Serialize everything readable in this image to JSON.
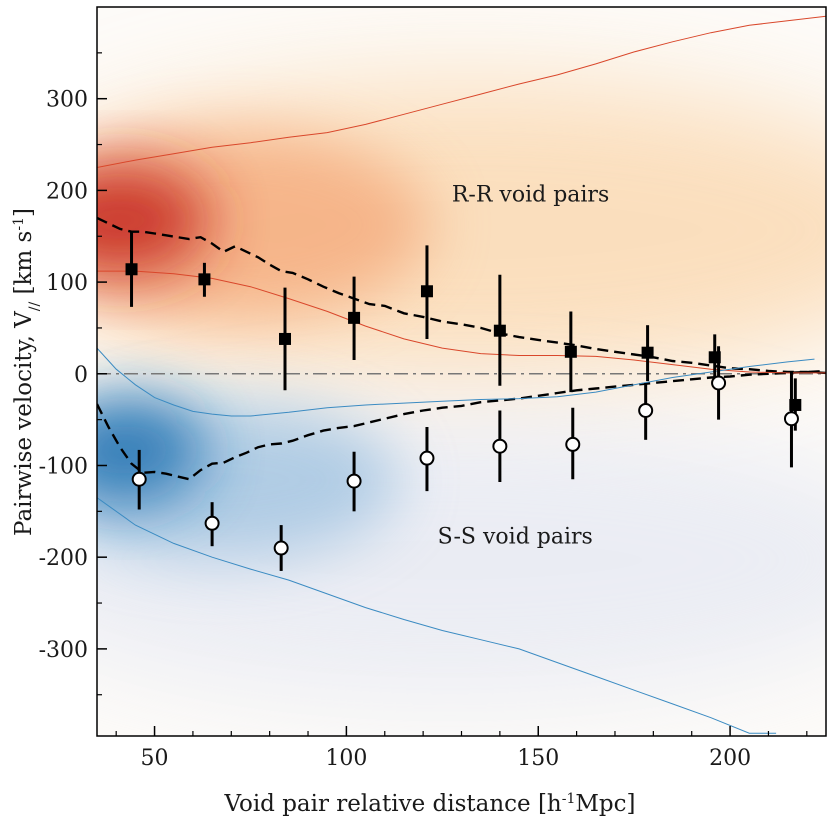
{
  "chart_data": {
    "type": "scatter",
    "xlabel": "Void pair relative distance [h-1Mpc]",
    "xlabel_parts": {
      "pre": "Void pair relative distance [h",
      "sup": "-1",
      "post": "Mpc]"
    },
    "ylabel": "Pairwise velocity, V// [km s-1]",
    "ylabel_parts": {
      "pre": "Pairwise velocity, V",
      "sub": "//",
      "mid": " [km s",
      "sup": "-1",
      "post": "]"
    },
    "xlim": [
      35,
      225
    ],
    "ylim": [
      -395,
      400
    ],
    "xticks": [
      50,
      100,
      150,
      200
    ],
    "xtick_labels": [
      "50",
      "100",
      "150",
      "200"
    ],
    "yticks": [
      300,
      200,
      100,
      0,
      -100,
      -200,
      -300
    ],
    "ytick_labels": [
      "300",
      "200",
      "100",
      "0",
      "-100",
      "-200",
      "-300"
    ],
    "grid": false,
    "annotations": [
      {
        "text": "R-R void pairs",
        "x": 148,
        "y": 188
      },
      {
        "text": "S-S void pairs",
        "x": 144,
        "y": -185
      }
    ],
    "zero_line": {
      "y": 0,
      "style": "dash-dot",
      "color": "#777777"
    },
    "series": [
      {
        "marker": "filled-square",
        "color": "#000000",
        "x": [
          44,
          63,
          84,
          102,
          121,
          140,
          158.5,
          178.5,
          196,
          217
        ],
        "y": [
          114,
          103,
          38,
          61,
          90,
          47,
          24,
          23,
          18,
          -34
        ],
        "err_low": [
          73,
          84,
          -18,
          15,
          38,
          -13,
          -20,
          -8,
          -8,
          -62
        ],
        "err_high": [
          156,
          121,
          94,
          106,
          140,
          108,
          68,
          53,
          43,
          -5
        ]
      },
      {
        "marker": "open-circle",
        "color": "#000000",
        "x": [
          46,
          65,
          83,
          102,
          121,
          140,
          159,
          178,
          197,
          216
        ],
        "y": [
          -115,
          -163,
          -190,
          -117,
          -92,
          -79,
          -77,
          -40,
          -10,
          -49
        ],
        "err_low": [
          -148,
          -188,
          -215,
          -150,
          -128,
          -118,
          -115,
          -72,
          -50,
          -102
        ],
        "err_high": [
          -83,
          -140,
          -165,
          -85,
          -58,
          -40,
          -37,
          -10,
          30,
          3
        ]
      },
      {
        "style": "dashed",
        "color": "#000000",
        "x": [
          35,
          38,
          41,
          44,
          47,
          50,
          53,
          56,
          59,
          62,
          65,
          68,
          71,
          74,
          77,
          80,
          83,
          86,
          90,
          94,
          98,
          102,
          106,
          110,
          115,
          120,
          125,
          130,
          135,
          140,
          145,
          150,
          155,
          160,
          165,
          170,
          175,
          180,
          185,
          190,
          195,
          200,
          205,
          210,
          215,
          220,
          225
        ],
        "y": [
          170,
          164,
          158,
          155,
          155,
          153,
          151,
          149,
          147,
          149,
          142,
          133,
          139,
          133,
          127,
          119,
          112,
          110,
          103,
          95,
          88,
          82,
          76,
          74,
          66,
          62,
          57,
          54,
          50,
          44,
          40,
          37,
          34,
          31,
          27,
          24,
          21,
          18,
          14,
          12,
          9,
          6,
          5,
          3,
          2,
          2,
          1
        ]
      },
      {
        "style": "dashed",
        "color": "#000000",
        "x": [
          35,
          38,
          41,
          44,
          47,
          50,
          53,
          56,
          59,
          62,
          65,
          68,
          71,
          74,
          77,
          80,
          83,
          86,
          90,
          94,
          98,
          102,
          106,
          110,
          115,
          120,
          125,
          130,
          135,
          140,
          145,
          150,
          155,
          160,
          165,
          170,
          175,
          180,
          185,
          190,
          195,
          200,
          205,
          210,
          215,
          220,
          225
        ],
        "y": [
          -33,
          -58,
          -80,
          -98,
          -108,
          -107,
          -109,
          -112,
          -115,
          -105,
          -98,
          -97,
          -91,
          -86,
          -80,
          -77,
          -76,
          -73,
          -67,
          -62,
          -59,
          -57,
          -53,
          -49,
          -44,
          -40,
          -37,
          -35,
          -31,
          -29,
          -27,
          -24,
          -21,
          -18,
          -16,
          -14,
          -12,
          -10,
          -8,
          -6,
          -4,
          -3,
          -1,
          0,
          1,
          2,
          3
        ]
      },
      {
        "style": "thin",
        "color": "#d9472b",
        "x": [
          35,
          45,
          55,
          65,
          75,
          85,
          95,
          105,
          115,
          125,
          135,
          145,
          155,
          165,
          175,
          185,
          195,
          205,
          215,
          225
        ],
        "y": [
          225,
          233,
          240,
          247,
          252,
          258,
          263,
          272,
          283,
          294,
          305,
          316,
          326,
          338,
          351,
          362,
          372,
          380,
          385,
          390
        ]
      },
      {
        "style": "thin",
        "color": "#d9472b",
        "x": [
          35,
          45,
          55,
          65,
          75,
          85,
          95,
          105,
          115,
          125,
          135,
          145,
          155,
          165,
          175,
          185,
          195,
          205,
          215,
          225
        ],
        "y": [
          112,
          112,
          109,
          104,
          95,
          82,
          68,
          52,
          38,
          28,
          22,
          20,
          20,
          19,
          15,
          10,
          5,
          2,
          1,
          1
        ]
      },
      {
        "style": "thin",
        "color": "#3b8bc2",
        "x": [
          35,
          40,
          45,
          50,
          55,
          60,
          65,
          70,
          75,
          85,
          95,
          105,
          115,
          125,
          135,
          145,
          155,
          165,
          175,
          185,
          195,
          205,
          215,
          222
        ],
        "y": [
          28,
          5,
          -12,
          -26,
          -34,
          -41,
          -44,
          -46,
          -46,
          -42,
          -37,
          -34,
          -32,
          -30,
          -28,
          -27,
          -25,
          -20,
          -12,
          -4,
          2,
          8,
          13,
          16
        ]
      },
      {
        "style": "thin",
        "color": "#3b8bc2",
        "x": [
          35,
          45,
          55,
          65,
          75,
          85,
          95,
          105,
          115,
          125,
          135,
          145,
          155,
          165,
          175,
          185,
          195,
          205,
          212
        ],
        "y": [
          -135,
          -165,
          -185,
          -200,
          -213,
          -225,
          -240,
          -255,
          -268,
          -280,
          -290,
          -300,
          -315,
          -330,
          -345,
          -360,
          -375,
          -392,
          -392
        ]
      }
    ],
    "background": {
      "type": "density-heatmap",
      "upper_colormap": [
        "#fef6ea",
        "#f8c78f",
        "#c92a1f"
      ],
      "lower_colormap": [
        "#f5f5fb",
        "#cdd6ea",
        "#1e78b8"
      ]
    }
  }
}
